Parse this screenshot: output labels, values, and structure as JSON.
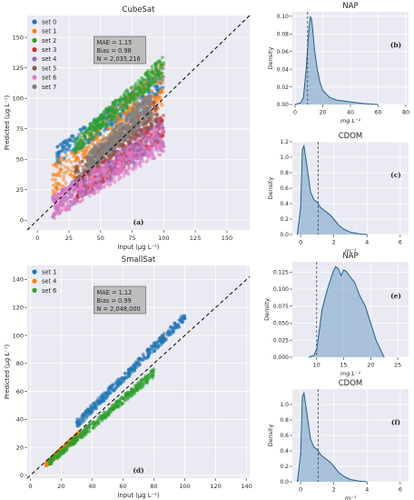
{
  "chart_data": [
    {
      "id": "a",
      "type": "scatter",
      "title": "CubeSat",
      "xlabel": "Input (μg L⁻¹)",
      "ylabel": "Predicted (μg L⁻¹)",
      "xlim": [
        -8,
        168
      ],
      "ylim": [
        -8,
        168
      ],
      "xticks": [
        0,
        25,
        50,
        75,
        100,
        125,
        150
      ],
      "yticks": [
        0,
        25,
        50,
        75,
        100,
        125,
        150
      ],
      "grid": true,
      "legend_position": "top-left",
      "identity_line": true,
      "stats": [
        "MAE = 1.15",
        "Bias = 0.98",
        "N = 2,035,216"
      ],
      "panel_label": "(a)",
      "series": [
        {
          "name": "set 0",
          "color": "#1f77b4",
          "x_range": [
            15,
            100
          ],
          "y_at_min": [
            45,
            60
          ],
          "y_at_max": [
            105,
            125
          ]
        },
        {
          "name": "set 1",
          "color": "#ff7f0e",
          "x_range": [
            12,
            100
          ],
          "y_at_min": [
            20,
            45
          ],
          "y_at_max": [
            95,
            130
          ]
        },
        {
          "name": "set 2",
          "color": "#2ca02c",
          "x_range": [
            30,
            100
          ],
          "y_at_min": [
            55,
            68
          ],
          "y_at_max": [
            118,
            135
          ]
        },
        {
          "name": "set 3",
          "color": "#d62728",
          "x_range": [
            30,
            100
          ],
          "y_at_min": [
            15,
            30
          ],
          "y_at_max": [
            65,
            90
          ]
        },
        {
          "name": "set 4",
          "color": "#9467bd",
          "x_range": [
            12,
            100
          ],
          "y_at_min": [
            2,
            20
          ],
          "y_at_max": [
            60,
            85
          ]
        },
        {
          "name": "set 5",
          "color": "#8c564b",
          "x_range": [
            30,
            95
          ],
          "y_at_min": [
            30,
            45
          ],
          "y_at_max": [
            80,
            100
          ]
        },
        {
          "name": "set 6",
          "color": "#e377c2",
          "x_range": [
            12,
            100
          ],
          "y_at_min": [
            0,
            20
          ],
          "y_at_max": [
            55,
            80
          ]
        },
        {
          "name": "set 7",
          "color": "#7f7f7f",
          "x_range": [
            40,
            90
          ],
          "y_at_min": [
            40,
            55
          ],
          "y_at_max": [
            85,
            105
          ]
        }
      ]
    },
    {
      "id": "b",
      "type": "area",
      "title": "NAP",
      "xlabel": "mg L⁻¹",
      "ylabel": "Density",
      "xlim": [
        -2,
        82
      ],
      "ylim": [
        0,
        0.105
      ],
      "xticks": [
        0,
        20,
        40,
        60,
        80
      ],
      "yticks": [
        0,
        0.02,
        0.04,
        0.06,
        0.08,
        0.1
      ],
      "ytick_labels": [
        "0.00",
        "0.02",
        "0.04",
        "0.06",
        "0.08",
        "0.10"
      ],
      "dashed_vline": 9,
      "panel_label": "(b)",
      "x": [
        0,
        4,
        6,
        8,
        10,
        11,
        12,
        13,
        14,
        16,
        18,
        20,
        25,
        30,
        35,
        40,
        45,
        50,
        55,
        60
      ],
      "y": [
        0,
        0.002,
        0.008,
        0.04,
        0.085,
        0.1,
        0.096,
        0.08,
        0.062,
        0.04,
        0.025,
        0.016,
        0.008,
        0.005,
        0.004,
        0.003,
        0.002,
        0.001,
        0.0005,
        0
      ]
    },
    {
      "id": "c",
      "type": "area",
      "title": "CDOM",
      "xlabel": "m⁻¹",
      "ylabel": "Density",
      "xlim": [
        -0.5,
        6.5
      ],
      "ylim": [
        0,
        1.2
      ],
      "xticks": [
        0,
        2,
        4,
        6
      ],
      "yticks": [
        0,
        0.2,
        0.4,
        0.6,
        0.8,
        1.0,
        1.2
      ],
      "ytick_labels": [
        "0.0",
        "0.2",
        "0.4",
        "0.6",
        "0.8",
        "1.0",
        "1.2"
      ],
      "dashed_vline": 1.05,
      "panel_label": "(c)",
      "x": [
        -0.2,
        0,
        0.1,
        0.2,
        0.4,
        0.6,
        0.8,
        1.0,
        1.2,
        1.5,
        1.8,
        2.0,
        2.3,
        2.6,
        3.0,
        3.5,
        4.0
      ],
      "y": [
        0,
        0.35,
        1.1,
        1.15,
        0.85,
        0.55,
        0.45,
        0.42,
        0.35,
        0.3,
        0.25,
        0.2,
        0.12,
        0.07,
        0.03,
        0.01,
        0
      ]
    },
    {
      "id": "d",
      "type": "scatter",
      "title": "SmallSat",
      "xlabel": "Input (μg L⁻¹)",
      "ylabel": "Predicted (μg L⁻¹)",
      "xlim": [
        -2,
        142
      ],
      "ylim": [
        -2,
        150
      ],
      "xticks": [
        0,
        20,
        40,
        60,
        80,
        100,
        120,
        140
      ],
      "yticks": [
        0,
        20,
        40,
        60,
        80,
        100,
        120,
        140
      ],
      "grid": true,
      "legend_position": "top-left",
      "identity_line": true,
      "stats": [
        "MAE = 1.12",
        "Bias = 0.99",
        "N = 2,048,000"
      ],
      "panel_label": "(d)",
      "series": [
        {
          "name": "set 1",
          "color": "#1f77b4",
          "x_range": [
            30,
            100
          ],
          "y_at_min": [
            34,
            40
          ],
          "y_at_max": [
            110,
            116
          ]
        },
        {
          "name": "set 4",
          "color": "#ff7f0e",
          "x_range": [
            10,
            32
          ],
          "y_at_min": [
            6,
            9
          ],
          "y_at_max": [
            28,
            32
          ]
        },
        {
          "name": "set 6",
          "color": "#2ca02c",
          "x_range": [
            12,
            80
          ],
          "y_at_min": [
            7,
            11
          ],
          "y_at_max": [
            70,
            76
          ]
        }
      ]
    },
    {
      "id": "e",
      "type": "area",
      "title": "NAP",
      "xlabel": "mg L⁻¹",
      "ylabel": "Density",
      "xlim": [
        5.5,
        27
      ],
      "ylim": [
        0,
        0.14
      ],
      "xticks": [
        10,
        15,
        20,
        25
      ],
      "yticks": [
        0,
        0.025,
        0.05,
        0.075,
        0.1,
        0.125
      ],
      "ytick_labels": [
        "0.000",
        "0.025",
        "0.050",
        "0.075",
        "0.100",
        "0.125"
      ],
      "dashed_vline": 10,
      "panel_label": "(e)",
      "x": [
        8.5,
        9.5,
        10,
        10.5,
        11,
        12,
        13,
        13.5,
        14,
        14.5,
        15,
        15.5,
        16,
        17,
        18,
        19,
        20,
        21,
        22,
        22.5
      ],
      "y": [
        0,
        0.003,
        0.012,
        0.04,
        0.07,
        0.1,
        0.125,
        0.133,
        0.13,
        0.12,
        0.128,
        0.126,
        0.12,
        0.11,
        0.09,
        0.075,
        0.05,
        0.025,
        0.008,
        0
      ]
    },
    {
      "id": "f",
      "type": "area",
      "title": "CDOM",
      "xlabel": "m⁻¹",
      "ylabel": "Density",
      "xlim": [
        -0.5,
        6.5
      ],
      "ylim": [
        0,
        1.2
      ],
      "xticks": [
        0,
        2,
        4,
        6
      ],
      "yticks": [
        0,
        0.2,
        0.4,
        0.6,
        0.8,
        1.0
      ],
      "ytick_labels": [
        "0.0",
        "0.2",
        "0.4",
        "0.6",
        "0.8",
        "1.0"
      ],
      "dashed_vline": 1.05,
      "panel_label": "(f)",
      "x": [
        -0.2,
        0,
        0.1,
        0.2,
        0.4,
        0.6,
        0.8,
        1.0,
        1.2,
        1.5,
        1.8,
        2.0,
        2.3,
        2.6,
        3.0,
        3.5,
        4.0
      ],
      "y": [
        0,
        0.35,
        1.1,
        1.15,
        0.85,
        0.55,
        0.45,
        0.42,
        0.35,
        0.3,
        0.25,
        0.2,
        0.12,
        0.07,
        0.03,
        0.01,
        0
      ]
    }
  ]
}
